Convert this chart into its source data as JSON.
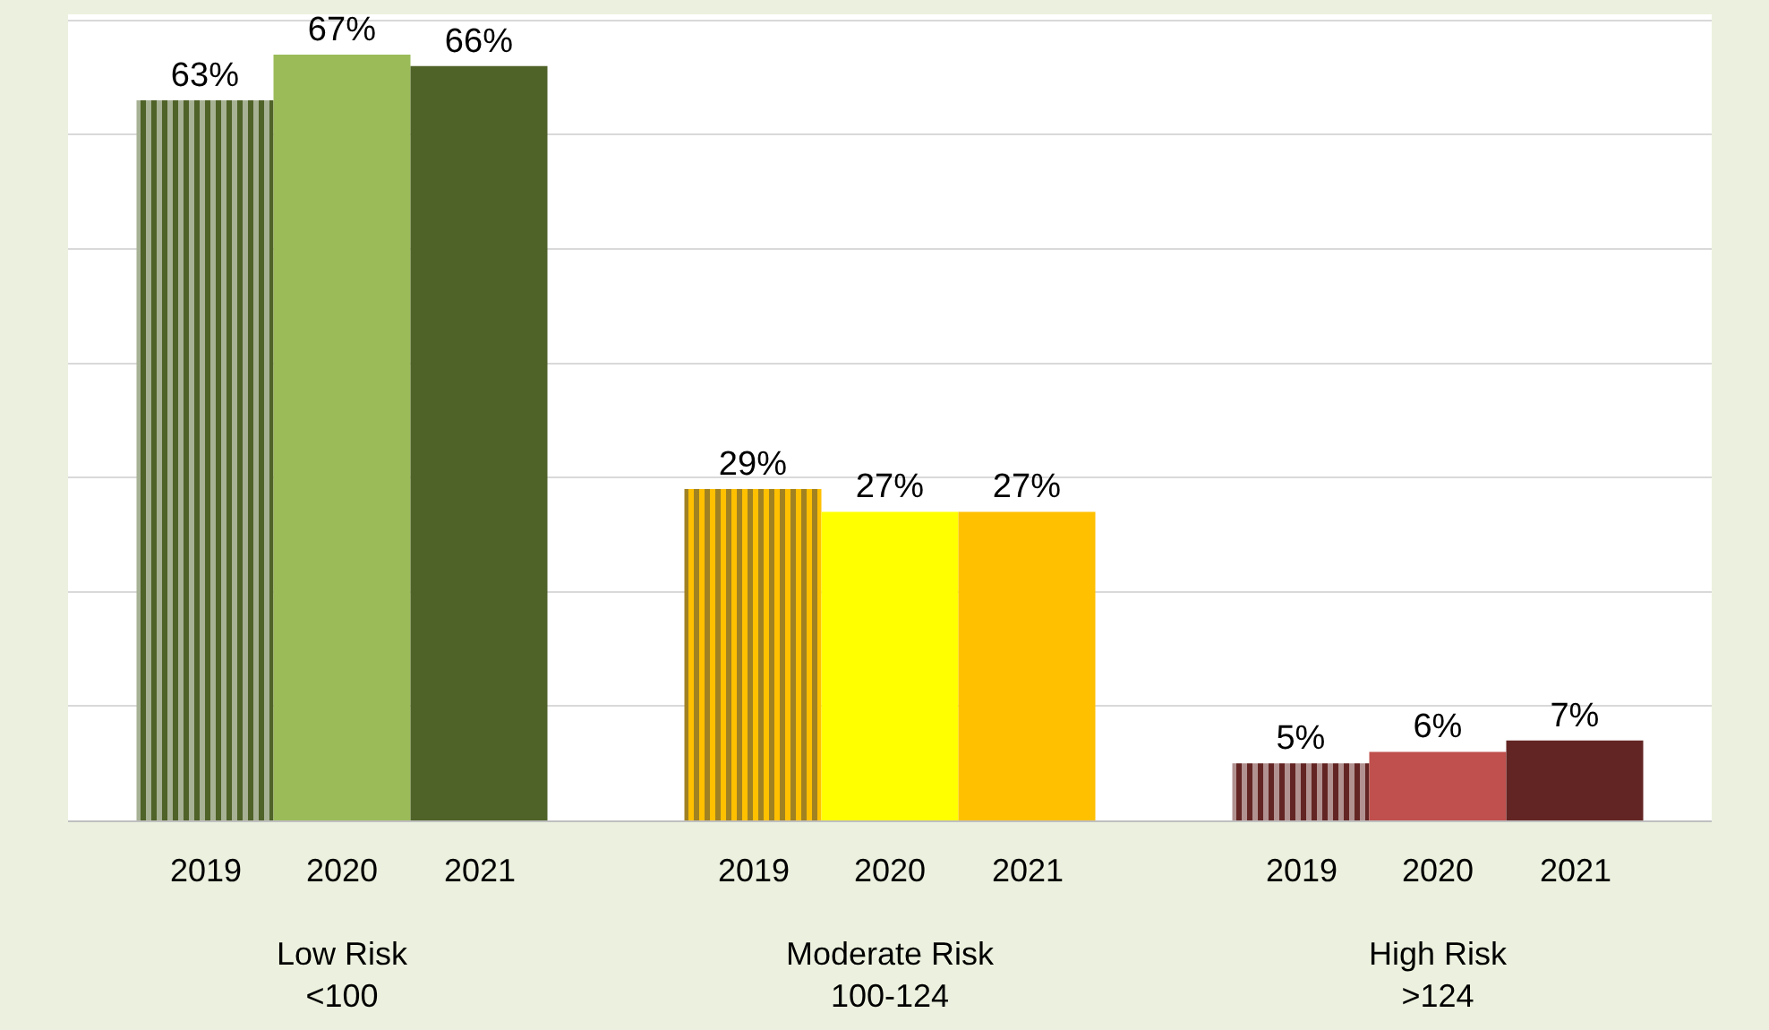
{
  "chart_data": {
    "type": "bar",
    "categories": [
      "Low Risk\n<100",
      "Moderate Risk\n100-124",
      "High Risk\n>124"
    ],
    "series": [
      {
        "name": "2019",
        "colors": [
          "#4f6228",
          "#ffc000",
          "#632523"
        ],
        "values": [
          63,
          29,
          5
        ],
        "value_labels": [
          "63%",
          "29%",
          "5%"
        ]
      },
      {
        "name": "2020",
        "colors": [
          "#9bbb59",
          "#ffff00",
          "#c0504d"
        ],
        "values": [
          67,
          27,
          6
        ],
        "value_labels": [
          "67%",
          "27%",
          "6%"
        ]
      },
      {
        "name": "2021",
        "colors": [
          "#4f6228",
          "#ffc000",
          "#632523"
        ],
        "values": [
          66,
          27,
          7
        ],
        "value_labels": [
          "66%",
          "27%",
          "7%"
        ]
      }
    ],
    "grid": "y",
    "tick_labels": "x"
  }
}
